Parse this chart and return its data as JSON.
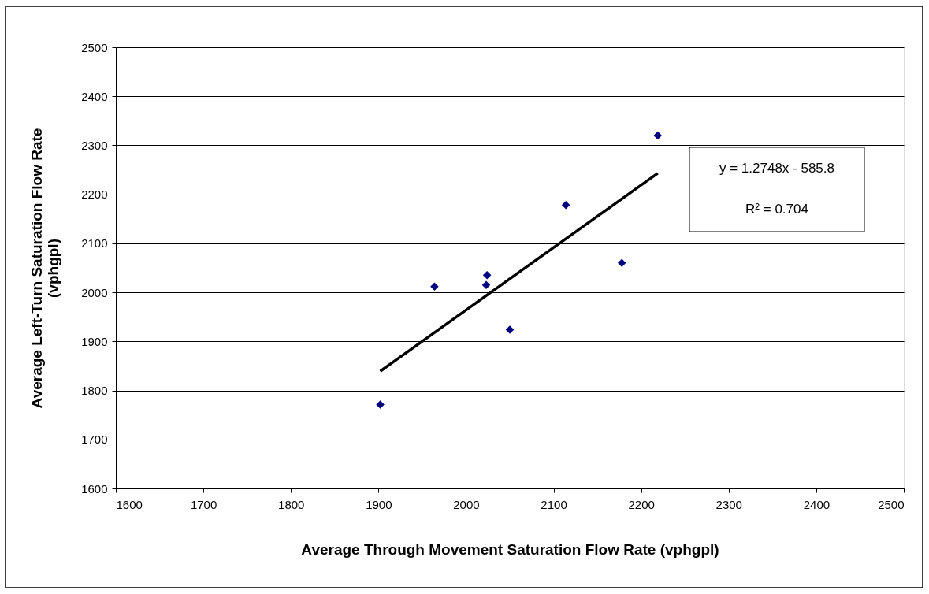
{
  "chart_data": {
    "type": "scatter",
    "xlabel": "Average Through Movement Saturation Flow Rate (vphgpl)",
    "ylabel": "Average Left-Turn Saturation Flow Rate\n(vphgpl)",
    "xlim": [
      1600,
      2500
    ],
    "xticks": [
      1600,
      1700,
      1800,
      1900,
      2000,
      2100,
      2200,
      2300,
      2400,
      2500
    ],
    "ylim": [
      1600,
      2500
    ],
    "yticks": [
      1600,
      1700,
      1800,
      1900,
      2000,
      2100,
      2200,
      2300,
      2400,
      2500
    ],
    "grid": "y",
    "series": [
      {
        "color": "#000080",
        "marker": "diamond",
        "x": [
          1902,
          1964,
          2023,
          2024,
          2050,
          2114,
          2178,
          2219
        ],
        "values": [
          1771,
          2012,
          2015,
          2035,
          1924,
          2178,
          2060,
          2320
        ]
      },
      {
        "type": "line",
        "color": "#000000",
        "marker": "none",
        "line_style": "solid",
        "x": [
          1902,
          2219
        ],
        "values": [
          1839,
          2243
        ]
      }
    ],
    "annotations": [
      "y = 1.2748x - 585.8",
      "R² = 0.704"
    ]
  }
}
